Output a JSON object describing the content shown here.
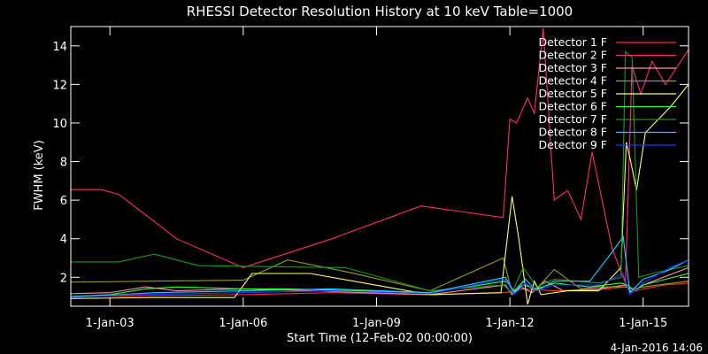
{
  "chart_data": {
    "type": "line",
    "title": "RHESSI Detector Resolution History at 10 keV Table=1000",
    "xlabel": "Start Time (12-Feb-02 00:00:00)",
    "ylabel": "FWHM (keV)",
    "timestamp": "4-Jan-2016 14:06",
    "xlim": [
      2002.12,
      2016.02
    ],
    "ylim": [
      0.5,
      15
    ],
    "x_ticks": [
      {
        "value": 2003.0,
        "label": "1-Jan-03"
      },
      {
        "value": 2006.0,
        "label": "1-Jan-06"
      },
      {
        "value": 2009.0,
        "label": "1-Jan-09"
      },
      {
        "value": 2012.0,
        "label": "1-Jan-12"
      },
      {
        "value": 2015.0,
        "label": "1-Jan-15"
      }
    ],
    "y_ticks": [
      {
        "value": 2,
        "label": "2"
      },
      {
        "value": 4,
        "label": "4"
      },
      {
        "value": 6,
        "label": "6"
      },
      {
        "value": 8,
        "label": "8"
      },
      {
        "value": 10,
        "label": "10"
      },
      {
        "value": 12,
        "label": "12"
      },
      {
        "value": 14,
        "label": "14"
      }
    ],
    "legend_position": "top-right",
    "grid": false,
    "series": [
      {
        "name": "Detector 1 F",
        "color": "#ff2a2a",
        "points": [
          [
            2002.12,
            1.0
          ],
          [
            2004.0,
            1.05
          ],
          [
            2006.0,
            1.1
          ],
          [
            2008.0,
            1.2
          ],
          [
            2010.2,
            1.1
          ],
          [
            2011.9,
            1.2
          ],
          [
            2012.3,
            1.4
          ],
          [
            2013.0,
            1.3
          ],
          [
            2014.0,
            1.35
          ],
          [
            2014.6,
            1.5
          ],
          [
            2014.85,
            1.3
          ],
          [
            2015.0,
            1.4
          ],
          [
            2015.5,
            1.6
          ],
          [
            2016.02,
            1.7
          ]
        ]
      },
      {
        "name": "Detector 2 F",
        "color": "#ff2a7a",
        "points": [
          [
            2002.12,
            6.55
          ],
          [
            2002.8,
            6.55
          ],
          [
            2003.2,
            6.3
          ],
          [
            2004.5,
            4.0
          ],
          [
            2006.0,
            2.5
          ],
          [
            2008.0,
            4.0
          ],
          [
            2010.0,
            5.7
          ],
          [
            2011.85,
            5.1
          ],
          [
            2012.0,
            10.2
          ],
          [
            2012.15,
            10.0
          ],
          [
            2012.4,
            11.3
          ],
          [
            2012.55,
            10.5
          ],
          [
            2012.75,
            14.9
          ],
          [
            2013.0,
            6.0
          ],
          [
            2013.3,
            6.5
          ],
          [
            2013.6,
            5.0
          ],
          [
            2013.85,
            8.5
          ],
          [
            2014.3,
            3.5
          ],
          [
            2014.6,
            1.7
          ],
          [
            2014.75,
            13.0
          ],
          [
            2014.85,
            12.2
          ],
          [
            2014.95,
            11.5
          ],
          [
            2015.2,
            13.2
          ],
          [
            2015.5,
            12.0
          ],
          [
            2016.02,
            13.8
          ]
        ]
      },
      {
        "name": "Detector 3 F",
        "color": "#ff8ab4",
        "points": [
          [
            2002.12,
            1.15
          ],
          [
            2003.0,
            1.2
          ],
          [
            2003.8,
            1.5
          ],
          [
            2004.5,
            1.3
          ],
          [
            2006.0,
            1.4
          ],
          [
            2007.5,
            1.3
          ],
          [
            2010.2,
            1.1
          ],
          [
            2011.9,
            1.6
          ],
          [
            2012.05,
            1.1
          ],
          [
            2012.25,
            1.5
          ],
          [
            2012.5,
            1.2
          ],
          [
            2012.8,
            1.8
          ],
          [
            2013.2,
            1.3
          ],
          [
            2014.0,
            1.4
          ],
          [
            2014.6,
            1.6
          ],
          [
            2014.75,
            1.2
          ],
          [
            2015.0,
            1.6
          ],
          [
            2016.02,
            2.5
          ]
        ]
      },
      {
        "name": "Detector 4 F",
        "color": "#9a9a22",
        "points": [
          [
            2002.12,
            1.75
          ],
          [
            2004.0,
            1.8
          ],
          [
            2006.0,
            1.85
          ],
          [
            2007.0,
            2.9
          ],
          [
            2008.3,
            2.3
          ],
          [
            2010.2,
            1.3
          ],
          [
            2011.85,
            3.0
          ],
          [
            2012.05,
            1.2
          ],
          [
            2012.3,
            1.8
          ],
          [
            2012.55,
            1.3
          ],
          [
            2013.0,
            2.4
          ],
          [
            2013.6,
            1.4
          ],
          [
            2014.0,
            1.5
          ],
          [
            2014.6,
            1.5
          ],
          [
            2014.75,
            1.4
          ],
          [
            2015.0,
            1.5
          ],
          [
            2016.02,
            1.8
          ]
        ]
      },
      {
        "name": "Detector 5 F",
        "color": "#ffff66",
        "points": [
          [
            2002.12,
            0.9
          ],
          [
            2004.0,
            0.95
          ],
          [
            2005.8,
            0.95
          ],
          [
            2006.2,
            2.2
          ],
          [
            2007.5,
            2.2
          ],
          [
            2010.2,
            1.1
          ],
          [
            2011.8,
            1.2
          ],
          [
            2012.05,
            6.2
          ],
          [
            2012.2,
            4.0
          ],
          [
            2012.4,
            0.6
          ],
          [
            2012.55,
            1.8
          ],
          [
            2012.7,
            1.1
          ],
          [
            2013.3,
            1.3
          ],
          [
            2014.0,
            1.3
          ],
          [
            2014.5,
            2.5
          ],
          [
            2014.62,
            9.0
          ],
          [
            2014.72,
            8.0
          ],
          [
            2014.85,
            6.5
          ],
          [
            2015.05,
            9.5
          ],
          [
            2015.6,
            10.8
          ],
          [
            2016.02,
            12.0
          ]
        ]
      },
      {
        "name": "Detector 6 F",
        "color": "#33ff33",
        "points": [
          [
            2002.12,
            1.0
          ],
          [
            2003.0,
            1.1
          ],
          [
            2003.8,
            1.4
          ],
          [
            2004.5,
            1.5
          ],
          [
            2006.0,
            1.4
          ],
          [
            2007.0,
            1.4
          ],
          [
            2010.2,
            1.2
          ],
          [
            2011.9,
            1.8
          ],
          [
            2012.1,
            1.3
          ],
          [
            2012.3,
            1.6
          ],
          [
            2012.6,
            1.4
          ],
          [
            2013.0,
            1.7
          ],
          [
            2013.8,
            1.5
          ],
          [
            2014.5,
            1.7
          ],
          [
            2014.65,
            1.6
          ],
          [
            2014.8,
            1.3
          ],
          [
            2015.0,
            1.6
          ],
          [
            2016.02,
            2.2
          ]
        ]
      },
      {
        "name": "Detector 7 F",
        "color": "#1a9a1a",
        "points": [
          [
            2002.12,
            2.8
          ],
          [
            2003.2,
            2.8
          ],
          [
            2004.0,
            3.2
          ],
          [
            2005.0,
            2.6
          ],
          [
            2008.3,
            2.5
          ],
          [
            2010.2,
            1.3
          ],
          [
            2011.85,
            1.6
          ],
          [
            2012.05,
            1.2
          ],
          [
            2012.3,
            2.5
          ],
          [
            2012.6,
            1.5
          ],
          [
            2013.0,
            1.9
          ],
          [
            2014.0,
            1.7
          ],
          [
            2014.5,
            2.0
          ],
          [
            2014.6,
            13.7
          ],
          [
            2014.75,
            13.4
          ],
          [
            2014.9,
            2.0
          ],
          [
            2015.2,
            2.2
          ],
          [
            2016.02,
            2.6
          ]
        ]
      },
      {
        "name": "Detector 8 F",
        "color": "#22ccff",
        "points": [
          [
            2002.12,
            1.0
          ],
          [
            2003.2,
            1.1
          ],
          [
            2004.0,
            1.2
          ],
          [
            2006.0,
            1.3
          ],
          [
            2008.0,
            1.4
          ],
          [
            2010.2,
            1.2
          ],
          [
            2011.9,
            2.0
          ],
          [
            2012.1,
            1.2
          ],
          [
            2012.35,
            1.9
          ],
          [
            2012.6,
            1.3
          ],
          [
            2013.0,
            1.8
          ],
          [
            2013.8,
            1.8
          ],
          [
            2014.3,
            3.3
          ],
          [
            2014.55,
            4.1
          ],
          [
            2014.7,
            1.2
          ],
          [
            2015.0,
            1.9
          ],
          [
            2015.5,
            2.3
          ],
          [
            2016.02,
            2.9
          ]
        ]
      },
      {
        "name": "Detector 9 F",
        "color": "#2233ff",
        "points": [
          [
            2002.12,
            0.95
          ],
          [
            2003.5,
            1.1
          ],
          [
            2006.0,
            1.2
          ],
          [
            2008.0,
            1.3
          ],
          [
            2010.2,
            1.15
          ],
          [
            2011.9,
            1.9
          ],
          [
            2012.1,
            1.1
          ],
          [
            2012.35,
            1.7
          ],
          [
            2012.6,
            1.3
          ],
          [
            2013.0,
            1.6
          ],
          [
            2014.0,
            1.6
          ],
          [
            2014.55,
            2.2
          ],
          [
            2014.7,
            1.1
          ],
          [
            2015.0,
            1.7
          ],
          [
            2015.6,
            2.5
          ],
          [
            2016.02,
            2.9
          ]
        ]
      }
    ]
  }
}
